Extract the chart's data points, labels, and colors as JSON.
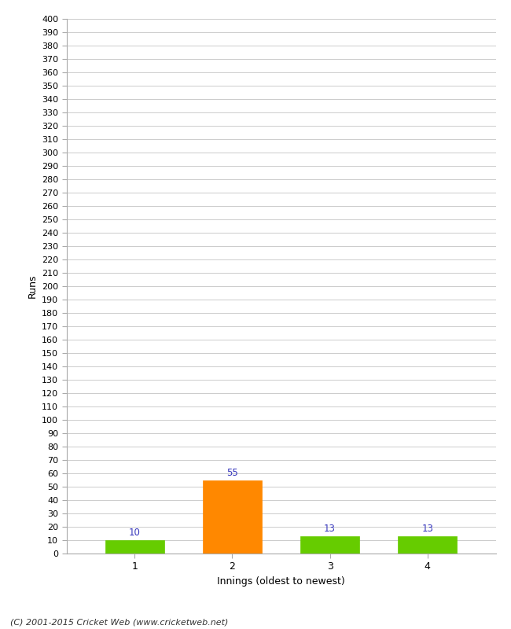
{
  "categories": [
    "1",
    "2",
    "3",
    "4"
  ],
  "values": [
    10,
    55,
    13,
    13
  ],
  "bar_colors": [
    "#66cc00",
    "#ff8800",
    "#66cc00",
    "#66cc00"
  ],
  "ylabel": "Runs",
  "xlabel": "Innings (oldest to newest)",
  "ylim": [
    0,
    400
  ],
  "annotation_color": "#3333bb",
  "background_color": "#ffffff",
  "grid_color": "#cccccc",
  "footer": "(C) 2001-2015 Cricket Web (www.cricketweb.net)",
  "bar_width": 0.6
}
